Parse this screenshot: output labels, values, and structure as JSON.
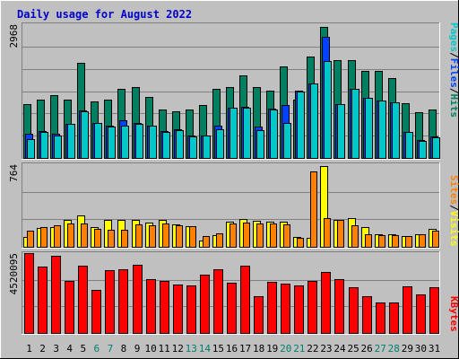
{
  "title": "Daily usage for August 2022",
  "colors": {
    "background": "#c0c0c0",
    "plot_bg": "#c0c0c0",
    "grid": "#808080",
    "title": "#0000cc",
    "pages": "#00c8c8",
    "files": "#0040ff",
    "hits": "#008060",
    "sites": "#ff8000",
    "visits": "#ffff00",
    "kbytes": "#ff0000",
    "weekend_label": "#00806b",
    "weekday_label": "#000000"
  },
  "right_labels": {
    "top": [
      "Pages",
      "/",
      "Files",
      "/",
      "Hits"
    ],
    "middle": [
      "Sites",
      "/",
      "Visits"
    ],
    "bottom": [
      "KBytes"
    ]
  },
  "chart_data": [
    {
      "type": "bar",
      "panel": "top",
      "y_max_label": "2968",
      "ylim": [
        0,
        2968
      ],
      "categories": [
        "1",
        "2",
        "3",
        "4",
        "5",
        "6",
        "7",
        "8",
        "9",
        "10",
        "11",
        "12",
        "13",
        "14",
        "15",
        "16",
        "17",
        "18",
        "19",
        "20",
        "21",
        "22",
        "23",
        "24",
        "25",
        "26",
        "27",
        "28",
        "29",
        "30",
        "31"
      ],
      "series": [
        {
          "name": "Hits",
          "values": [
            1190,
            1290,
            1390,
            1290,
            2110,
            1250,
            1290,
            1530,
            1570,
            1350,
            1070,
            1030,
            1070,
            1170,
            1530,
            1570,
            1830,
            1570,
            1490,
            2030,
            1290,
            2250,
            2910,
            2170,
            2170,
            1930,
            1930,
            1770,
            1210,
            1010,
            1070
          ]
        },
        {
          "name": "Files",
          "values": [
            530,
            590,
            530,
            750,
            1050,
            770,
            710,
            830,
            770,
            710,
            590,
            630,
            490,
            490,
            710,
            1110,
            1130,
            690,
            1090,
            1170,
            1490,
            1650,
            2690,
            1190,
            1530,
            1330,
            1270,
            1230,
            570,
            390,
            470
          ]
        },
        {
          "name": "Pages",
          "values": [
            410,
            570,
            490,
            750,
            1030,
            770,
            690,
            710,
            750,
            710,
            570,
            610,
            470,
            490,
            630,
            1110,
            1110,
            610,
            1070,
            770,
            1470,
            1650,
            2150,
            1190,
            1530,
            1330,
            1270,
            1230,
            570,
            370,
            450
          ]
        }
      ]
    },
    {
      "type": "bar",
      "panel": "middle",
      "y_max_label": "764",
      "ylim": [
        0,
        764
      ],
      "categories": [
        "1",
        "2",
        "3",
        "4",
        "5",
        "6",
        "7",
        "8",
        "9",
        "10",
        "11",
        "12",
        "13",
        "14",
        "15",
        "16",
        "17",
        "18",
        "19",
        "20",
        "21",
        "22",
        "23",
        "24",
        "25",
        "26",
        "27",
        "28",
        "29",
        "30",
        "31"
      ],
      "series": [
        {
          "name": "Visits",
          "values": [
            95,
            176,
            185,
            253,
            294,
            181,
            245,
            253,
            245,
            227,
            253,
            204,
            193,
            59,
            108,
            235,
            258,
            237,
            229,
            229,
            90,
            80,
            744,
            247,
            264,
            185,
            113,
            113,
            97,
            116,
            167
          ]
        },
        {
          "name": "Sites",
          "values": [
            149,
            181,
            201,
            217,
            217,
            164,
            156,
            154,
            210,
            199,
            217,
            199,
            188,
            96,
            122,
            213,
            223,
            213,
            212,
            211,
            79,
            699,
            269,
            245,
            201,
            115,
            108,
            110,
            97,
            116,
            148
          ]
        }
      ]
    },
    {
      "type": "bar",
      "panel": "bottom",
      "y_max_label": "4520095",
      "ylim": [
        0,
        4520095
      ],
      "categories": [
        "1",
        "2",
        "3",
        "4",
        "5",
        "6",
        "7",
        "8",
        "9",
        "10",
        "11",
        "12",
        "13",
        "14",
        "15",
        "16",
        "17",
        "18",
        "19",
        "20",
        "21",
        "22",
        "23",
        "24",
        "25",
        "26",
        "27",
        "28",
        "29",
        "30",
        "31"
      ],
      "series": [
        {
          "name": "KBytes",
          "values": [
            4520095,
            3754000,
            4360000,
            2957000,
            3811000,
            2436000,
            3545000,
            3616000,
            3865000,
            3033000,
            2949000,
            2752000,
            2704000,
            3285000,
            3612000,
            2847000,
            3833000,
            2096000,
            2880000,
            2769000,
            2696000,
            2948000,
            3453000,
            3057000,
            2597000,
            2105000,
            1717000,
            1751000,
            2657000,
            2170000,
            2576000
          ]
        }
      ]
    }
  ]
}
